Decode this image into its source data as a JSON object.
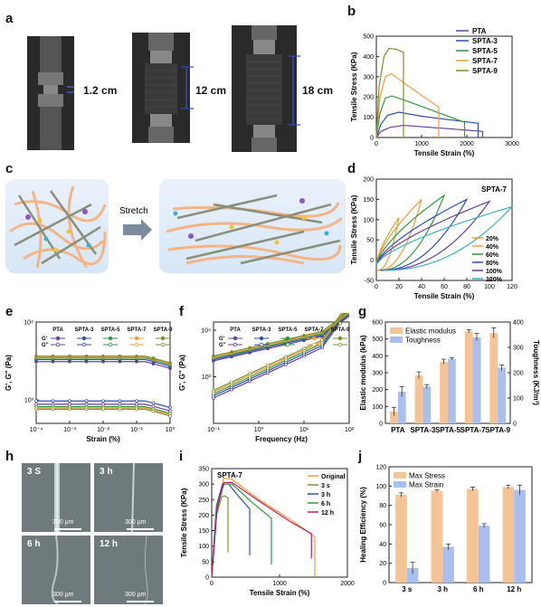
{
  "panel_labels": {
    "a": "a",
    "b": "b",
    "c": "c",
    "d": "d",
    "e": "e",
    "f": "f",
    "g": "g",
    "h": "h",
    "i": "i",
    "j": "j"
  },
  "photo_a": {
    "labels": [
      "1.2 cm",
      "12 cm",
      "18 cm"
    ]
  },
  "scheme_c": {
    "arrow_label": "Stretch"
  },
  "micrographs_h": {
    "labels": [
      "3 S",
      "3 h",
      "6 h",
      "12 h"
    ],
    "scalebar": "300 μm"
  },
  "colors": {
    "PTA": "#6a3d9a",
    "SPTA-3": "#2b4fb3",
    "SPTA-5": "#2e9a3c",
    "SPTA-7": "#f39a3a",
    "SPTA-9": "#7f8f2d",
    "orange_bar": "#f6c394",
    "blue_bar": "#a9bff0"
  },
  "chart_data": [
    {
      "id": "b",
      "type": "line",
      "xlabel": "Tensile Strain (%)",
      "ylabel": "Tensile Stress (KPa)",
      "xlim": [
        0,
        3000
      ],
      "ylim": [
        0,
        500
      ],
      "xticks": [
        0,
        1000,
        2000,
        3000
      ],
      "yticks": [
        0,
        100,
        200,
        300,
        400,
        500
      ],
      "legend_position": "top-right",
      "series": [
        {
          "name": "PTA",
          "color": "#6a3d9a",
          "points": [
            [
              0,
              0
            ],
            [
              100,
              30
            ],
            [
              300,
              50
            ],
            [
              600,
              60
            ],
            [
              1200,
              50
            ],
            [
              1900,
              38
            ],
            [
              2350,
              30
            ],
            [
              2350,
              0
            ]
          ]
        },
        {
          "name": "SPTA-3",
          "color": "#2b4fb3",
          "points": [
            [
              0,
              0
            ],
            [
              100,
              65
            ],
            [
              250,
              110
            ],
            [
              500,
              125
            ],
            [
              1000,
              105
            ],
            [
              1700,
              85
            ],
            [
              2250,
              70
            ],
            [
              2250,
              0
            ]
          ]
        },
        {
          "name": "SPTA-5",
          "color": "#2e9a3c",
          "points": [
            [
              0,
              0
            ],
            [
              80,
              120
            ],
            [
              200,
              195
            ],
            [
              350,
              205
            ],
            [
              800,
              170
            ],
            [
              1400,
              120
            ],
            [
              1950,
              75
            ],
            [
              1950,
              0
            ]
          ]
        },
        {
          "name": "SPTA-7",
          "color": "#f39a3a",
          "points": [
            [
              0,
              0
            ],
            [
              80,
              200
            ],
            [
              200,
              300
            ],
            [
              330,
              315
            ],
            [
              700,
              255
            ],
            [
              1150,
              185
            ],
            [
              1380,
              150
            ],
            [
              1380,
              0
            ]
          ]
        },
        {
          "name": "SPTA-9",
          "color": "#7f8f2d",
          "points": [
            [
              0,
              0
            ],
            [
              60,
              250
            ],
            [
              170,
              400
            ],
            [
              280,
              440
            ],
            [
              450,
              435
            ],
            [
              600,
              420
            ],
            [
              600,
              0
            ]
          ]
        }
      ]
    },
    {
      "id": "d",
      "type": "line",
      "title": "SPTA-7",
      "xlabel": "Tensile Strain (%)",
      "ylabel": "Tensile Stress (KPa)",
      "xlim": [
        0,
        120
      ],
      "ylim": [
        -50,
        200
      ],
      "xticks": [
        0,
        20,
        40,
        60,
        80,
        100,
        120
      ],
      "yticks": [
        -50,
        0,
        50,
        100,
        150,
        200
      ],
      "legend_position": "bottom-right",
      "series": [
        {
          "name": "20%",
          "color": "#e0a030",
          "peak_strain": 20,
          "peak_stress": 105
        },
        {
          "name": "40%",
          "color": "#f39a3a",
          "peak_strain": 40,
          "peak_stress": 150
        },
        {
          "name": "60%",
          "color": "#2e9a3c",
          "peak_strain": 60,
          "peak_stress": 160
        },
        {
          "name": "80%",
          "color": "#2b4fb3",
          "peak_strain": 80,
          "peak_stress": 150
        },
        {
          "name": "100%",
          "color": "#6a3d9a",
          "peak_strain": 100,
          "peak_stress": 145
        },
        {
          "name": "120%",
          "color": "#3bb0c9",
          "peak_strain": 120,
          "peak_stress": 132
        }
      ]
    },
    {
      "id": "e",
      "type": "line",
      "xlabel": "Strain (%)",
      "ylabel": "G', G'' (Pa)",
      "xscale": "log",
      "yscale": "log",
      "xlim": [
        0.0001,
        1
      ],
      "ylim": [
        500,
        10000
      ],
      "xticks": [
        "10⁻⁴",
        "10⁻³",
        "10⁻²",
        "10⁻¹",
        "10⁰"
      ],
      "yticks": [
        "10³",
        "10⁴"
      ],
      "legend": {
        "header": [
          "PTA",
          "SPTA-3",
          "SPTA-5",
          "SPTA-7",
          "SPTA-9"
        ],
        "rows": [
          "G'",
          "G''"
        ]
      },
      "series": [
        {
          "name": "PTA G'",
          "color": "#6a3d9a",
          "value": 3100
        },
        {
          "name": "SPTA-3 G'",
          "color": "#2b4fb3",
          "value": 3300
        },
        {
          "name": "SPTA-5 G'",
          "color": "#2e9a3c",
          "value": 3450
        },
        {
          "name": "SPTA-7 G'",
          "color": "#f39a3a",
          "value": 3550
        },
        {
          "name": "SPTA-9 G'",
          "color": "#7f8f2d",
          "value": 3650
        },
        {
          "name": "PTA G''",
          "color": "#6a3d9a",
          "value": 880
        },
        {
          "name": "SPTA-3 G''",
          "color": "#2b4fb3",
          "value": 970
        },
        {
          "name": "SPTA-5 G''",
          "color": "#2e9a3c",
          "value": 820
        },
        {
          "name": "SPTA-7 G''",
          "color": "#f39a3a",
          "value": 790
        },
        {
          "name": "SPTA-9 G''",
          "color": "#7f8f2d",
          "value": 760
        }
      ]
    },
    {
      "id": "f",
      "type": "line",
      "xlabel": "Frequency (Hz)",
      "ylabel": "G', G'' (Pa)",
      "xscale": "log",
      "yscale": "log",
      "xlim": [
        0.1,
        100
      ],
      "ylim": [
        100,
        15000
      ],
      "xticks": [
        "10⁻¹",
        "10⁰",
        "10¹",
        "10²"
      ],
      "yticks": [
        "10³",
        "10⁴"
      ],
      "legend": {
        "header": [
          "PTA",
          "SPTA-3",
          "SPTA-5",
          "SPTA-7",
          "SPTA-9"
        ],
        "rows": [
          "G'",
          "G''"
        ]
      }
    },
    {
      "id": "g",
      "type": "bar",
      "categories": [
        "PTA",
        "SPTA-3",
        "SPTA-5",
        "SPTA-7",
        "SPTA-9"
      ],
      "ylabel": "Elastic modulus (kPa)",
      "y2label": "Toughness (KJ/m³)",
      "ylim": [
        0,
        600
      ],
      "y2lim": [
        0,
        400
      ],
      "yticks": [
        0,
        100,
        200,
        300,
        400,
        500,
        600
      ],
      "y2ticks": [
        0,
        100,
        200,
        300,
        400
      ],
      "legend_position": "top-left",
      "series": [
        {
          "name": "Elastic modulus",
          "color": "#f6c394",
          "axis": "left",
          "values": [
            70,
            285,
            365,
            545,
            535
          ],
          "errors": [
            25,
            20,
            15,
            10,
            30
          ]
        },
        {
          "name": "Toughness",
          "color": "#a9bff0",
          "axis": "right",
          "values": [
            125,
            145,
            255,
            340,
            220
          ],
          "errors": [
            20,
            8,
            5,
            15,
            10
          ]
        }
      ]
    },
    {
      "id": "i",
      "type": "line",
      "title": "SPTA-7",
      "xlabel": "Tensile Strain (%)",
      "ylabel": "Tensile Stress (KPa)",
      "xlim": [
        0,
        2000
      ],
      "ylim": [
        0,
        350
      ],
      "xticks": [
        0,
        1000,
        2000
      ],
      "yticks": [
        0,
        50,
        100,
        150,
        200,
        250,
        300,
        350
      ],
      "legend_position": "top-right",
      "series": [
        {
          "name": "Original",
          "color": "#f39a3a",
          "points": [
            [
              0,
              0
            ],
            [
              80,
              230
            ],
            [
              180,
              320
            ],
            [
              300,
              315
            ],
            [
              700,
              250
            ],
            [
              1200,
              180
            ],
            [
              1520,
              130
            ],
            [
              1520,
              0
            ]
          ]
        },
        {
          "name": "3 s",
          "color": "#7f8f2d",
          "points": [
            [
              0,
              0
            ],
            [
              70,
              200
            ],
            [
              150,
              260
            ],
            [
              200,
              262
            ],
            [
              240,
              255
            ],
            [
              240,
              80
            ]
          ]
        },
        {
          "name": "3 h",
          "color": "#2b4fb3",
          "points": [
            [
              0,
              0
            ],
            [
              70,
              230
            ],
            [
              160,
              300
            ],
            [
              250,
              300
            ],
            [
              400,
              260
            ],
            [
              560,
              220
            ],
            [
              560,
              70
            ]
          ]
        },
        {
          "name": "6 h",
          "color": "#2e9a3c",
          "points": [
            [
              0,
              0
            ],
            [
              80,
              230
            ],
            [
              180,
              300
            ],
            [
              300,
              300
            ],
            [
              600,
              240
            ],
            [
              880,
              190
            ],
            [
              880,
              40
            ]
          ]
        },
        {
          "name": "12 h",
          "color": "#c2185b",
          "points": [
            [
              0,
              0
            ],
            [
              80,
              220
            ],
            [
              180,
              305
            ],
            [
              300,
              305
            ],
            [
              700,
              245
            ],
            [
              1150,
              180
            ],
            [
              1470,
              140
            ],
            [
              1470,
              60
            ]
          ]
        }
      ]
    },
    {
      "id": "j",
      "type": "bar",
      "categories": [
        "3 s",
        "3 h",
        "6 h",
        "12 h"
      ],
      "ylabel": "Healing Efficiency (%)",
      "ylim": [
        0,
        120
      ],
      "yticks": [
        0,
        20,
        40,
        60,
        80,
        100,
        120
      ],
      "legend_position": "top-left",
      "series": [
        {
          "name": "Max Stress",
          "color": "#f6c394",
          "values": [
            91,
            95,
            97,
            99
          ],
          "errors": [
            2,
            1,
            2,
            2
          ]
        },
        {
          "name": "Max Strain",
          "color": "#a9bff0",
          "values": [
            15,
            37,
            59,
            96
          ],
          "errors": [
            6,
            3,
            2,
            5
          ]
        }
      ]
    }
  ]
}
